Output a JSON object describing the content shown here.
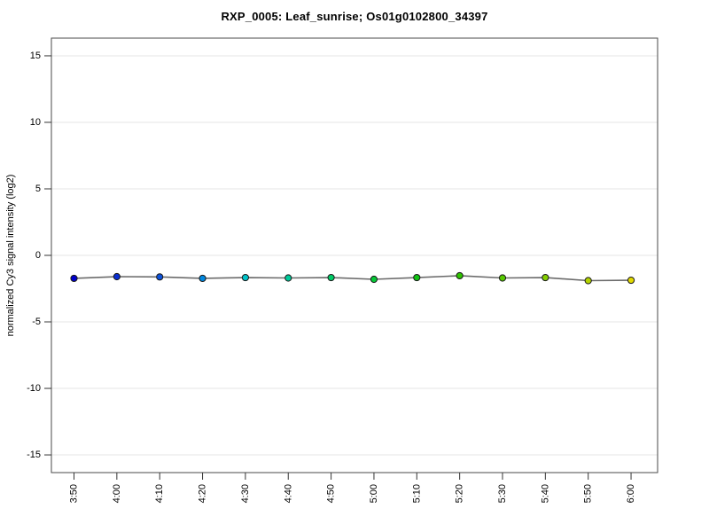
{
  "page": {
    "background": "#ffffff"
  },
  "chart_data": {
    "type": "line",
    "title": "RXP_0005: Leaf_sunrise; Os01g0102800_34397",
    "xlabel": "",
    "ylabel": "normalized Cy3 signal intensity (log2)",
    "categories": [
      "3:50",
      "4:00",
      "4:10",
      "4:20",
      "4:30",
      "4:40",
      "4:50",
      "5:00",
      "5:10",
      "5:20",
      "5:30",
      "5:40",
      "5:50",
      "6:00"
    ],
    "series": [
      {
        "name": "normalized Cy3 signal intensity (log2)",
        "values": [
          -1.73,
          -1.6,
          -1.62,
          -1.73,
          -1.67,
          -1.7,
          -1.67,
          -1.8,
          -1.67,
          -1.53,
          -1.7,
          -1.67,
          -1.9,
          -1.87
        ],
        "point_colors": [
          "#0000CC",
          "#0A2FD2",
          "#0D52DA",
          "#0087DF",
          "#00C3C9",
          "#00CB9B",
          "#00CB66",
          "#06C737",
          "#12C414",
          "#2FC400",
          "#57C900",
          "#84CE00",
          "#B4D400",
          "#E2DA00"
        ],
        "line_color": "#6b6b6b"
      }
    ],
    "ylim": [
      -16.33,
      16.33
    ],
    "yticks": [
      -15,
      -10,
      -5,
      0,
      5,
      10,
      15
    ],
    "grid": "horizontal-only",
    "grid_color": "#e4e4e4",
    "axis_color": "#4a4a4a",
    "tick_color": "#333333",
    "marker_outline": "#1a1a1a",
    "legend": "none"
  }
}
